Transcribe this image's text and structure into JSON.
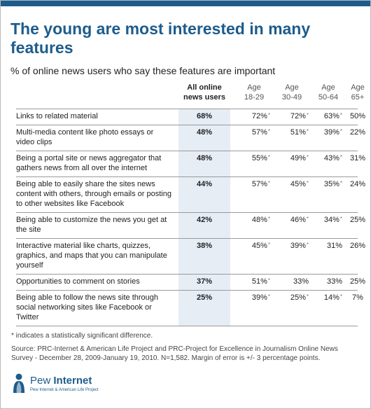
{
  "title": "The young are most interested in many features",
  "subtitle": "% of online news users who say these features are important",
  "columns": {
    "all": [
      "All online",
      "news users"
    ],
    "age1": [
      "Age",
      "18-29"
    ],
    "age2": [
      "Age",
      "30-49"
    ],
    "age3": [
      "Age",
      "50-64"
    ],
    "age4": [
      "Age",
      "65+"
    ]
  },
  "chart_data": {
    "type": "table",
    "title": "The young are most interested in many features",
    "subtitle": "% of online news users who say these features are important",
    "columns": [
      "All online news users",
      "Age 18-29",
      "Age 30-49",
      "Age 50-64",
      "Age 65+"
    ],
    "rows": [
      {
        "label": "Links to related material",
        "values": [
          "68%",
          "72%",
          "72%",
          "63%",
          "50%"
        ],
        "significant": [
          false,
          true,
          true,
          true,
          false
        ]
      },
      {
        "label": "Multi-media content like photo essays or video clips",
        "values": [
          "48%",
          "57%",
          "51%",
          "39%",
          "22%"
        ],
        "significant": [
          false,
          true,
          true,
          true,
          false
        ]
      },
      {
        "label": "Being a portal site or news aggregator that gathers news from all over the internet",
        "values": [
          "48%",
          "55%",
          "49%",
          "43%",
          "31%"
        ],
        "significant": [
          false,
          true,
          true,
          true,
          false
        ]
      },
      {
        "label": "Being able to easily share the sites news content with others, through emails or posting to other websites like Facebook",
        "values": [
          "44%",
          "57%",
          "45%",
          "35%",
          "24%"
        ],
        "significant": [
          false,
          true,
          true,
          true,
          false
        ]
      },
      {
        "label": "Being able to customize the news you get at the site",
        "values": [
          "42%",
          "48%",
          "46%",
          "34%",
          "25%"
        ],
        "significant": [
          false,
          true,
          true,
          true,
          false
        ]
      },
      {
        "label": "Interactive material like charts, quizzes, graphics, and maps that you can manipulate yourself",
        "values": [
          "38%",
          "45%",
          "39%",
          "31%",
          "26%"
        ],
        "significant": [
          false,
          true,
          true,
          false,
          false
        ]
      },
      {
        "label": "Opportunities to comment on stories",
        "values": [
          "37%",
          "51%",
          "33%",
          "33%",
          "25%"
        ],
        "significant": [
          false,
          true,
          false,
          false,
          false
        ]
      },
      {
        "label": "Being able to follow the news site through social networking sites like Facebook or Twitter",
        "values": [
          "25%",
          "39%",
          "25%",
          "14%",
          "7%"
        ],
        "significant": [
          false,
          true,
          true,
          true,
          false
        ]
      }
    ]
  },
  "star_symbol": "*",
  "note": "* indicates a statistically significant difference.",
  "source": "Source: PRC-Internet & American Life Project and PRC-Project for Excellence in Journalism Online News Survey - December 28, 2009-January 19, 2010. N=1,582. Margin of error is +/- 3 percentage points.",
  "logo": {
    "name_a": "Pew",
    "name_b": "Internet",
    "tagline": "Pew Internet & American Life Project"
  },
  "colors": {
    "brand": "#1d5c8c",
    "band": "#e6edf4",
    "rule": "#9a9a9a"
  }
}
